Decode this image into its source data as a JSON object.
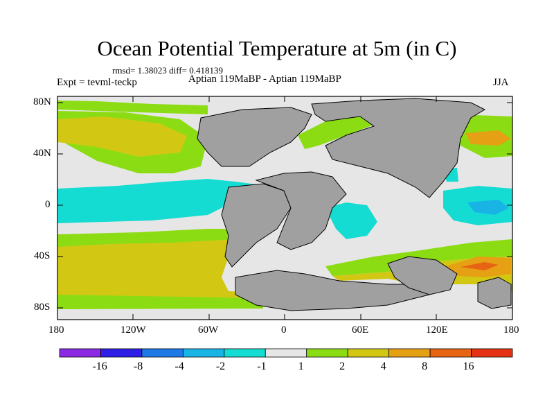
{
  "title": "Ocean Potential Temperature at 5m (in C)",
  "stats": "rmsd= 1.38023 diff= 0.418139",
  "experiment": "Expt = tevml-teckp",
  "experiment_label": "Aptian   119MaBP - Aptian   119MaBP",
  "season": "JJA",
  "map": {
    "lat_ticks": [
      "80N",
      "40N",
      "0",
      "40S",
      "80S"
    ],
    "lon_ticks": [
      "180",
      "120W",
      "60W",
      "0",
      "60E",
      "120E",
      "180"
    ],
    "land_color": "#a0a0a0"
  },
  "colorbar": {
    "colors": [
      "#8a2be2",
      "#2f1ee6",
      "#1e78e6",
      "#19b4e6",
      "#14dcd2",
      "#e6e6e6",
      "#8cdc14",
      "#d2c814",
      "#e6a014",
      "#e66414",
      "#e63214"
    ],
    "labels": [
      "-16",
      "-8",
      "-4",
      "-2",
      "-1",
      "1",
      "2",
      "4",
      "8",
      "16"
    ]
  }
}
